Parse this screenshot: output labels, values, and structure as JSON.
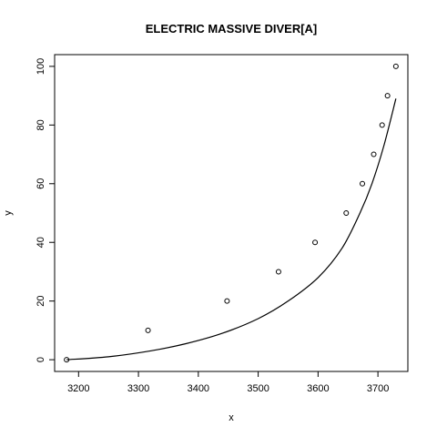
{
  "chart_data": {
    "type": "scatter",
    "title": "ELECTRIC MASSIVE DIVER[A]",
    "xlabel": "x",
    "ylabel": "y",
    "xlim": [
      3160,
      3750
    ],
    "ylim": [
      -4,
      104
    ],
    "x_ticks": [
      3200,
      3300,
      3400,
      3500,
      3600,
      3700
    ],
    "y_ticks": [
      0,
      20,
      40,
      60,
      80,
      100
    ],
    "grid": false,
    "legend": "none",
    "points": [
      {
        "x": 3180,
        "y": 0
      },
      {
        "x": 3316,
        "y": 10
      },
      {
        "x": 3448,
        "y": 20
      },
      {
        "x": 3534,
        "y": 30
      },
      {
        "x": 3595,
        "y": 40
      },
      {
        "x": 3647,
        "y": 50
      },
      {
        "x": 3674,
        "y": 60
      },
      {
        "x": 3693,
        "y": 70
      },
      {
        "x": 3707,
        "y": 80
      },
      {
        "x": 3716,
        "y": 90
      },
      {
        "x": 3730,
        "y": 100
      }
    ],
    "curve": [
      {
        "x": 3180,
        "y": 0
      },
      {
        "x": 3250,
        "y": 1
      },
      {
        "x": 3320,
        "y": 3
      },
      {
        "x": 3380,
        "y": 5.5
      },
      {
        "x": 3440,
        "y": 9
      },
      {
        "x": 3500,
        "y": 14
      },
      {
        "x": 3550,
        "y": 20
      },
      {
        "x": 3600,
        "y": 28
      },
      {
        "x": 3640,
        "y": 38
      },
      {
        "x": 3670,
        "y": 50
      },
      {
        "x": 3690,
        "y": 60
      },
      {
        "x": 3710,
        "y": 73
      },
      {
        "x": 3730,
        "y": 89
      }
    ]
  }
}
